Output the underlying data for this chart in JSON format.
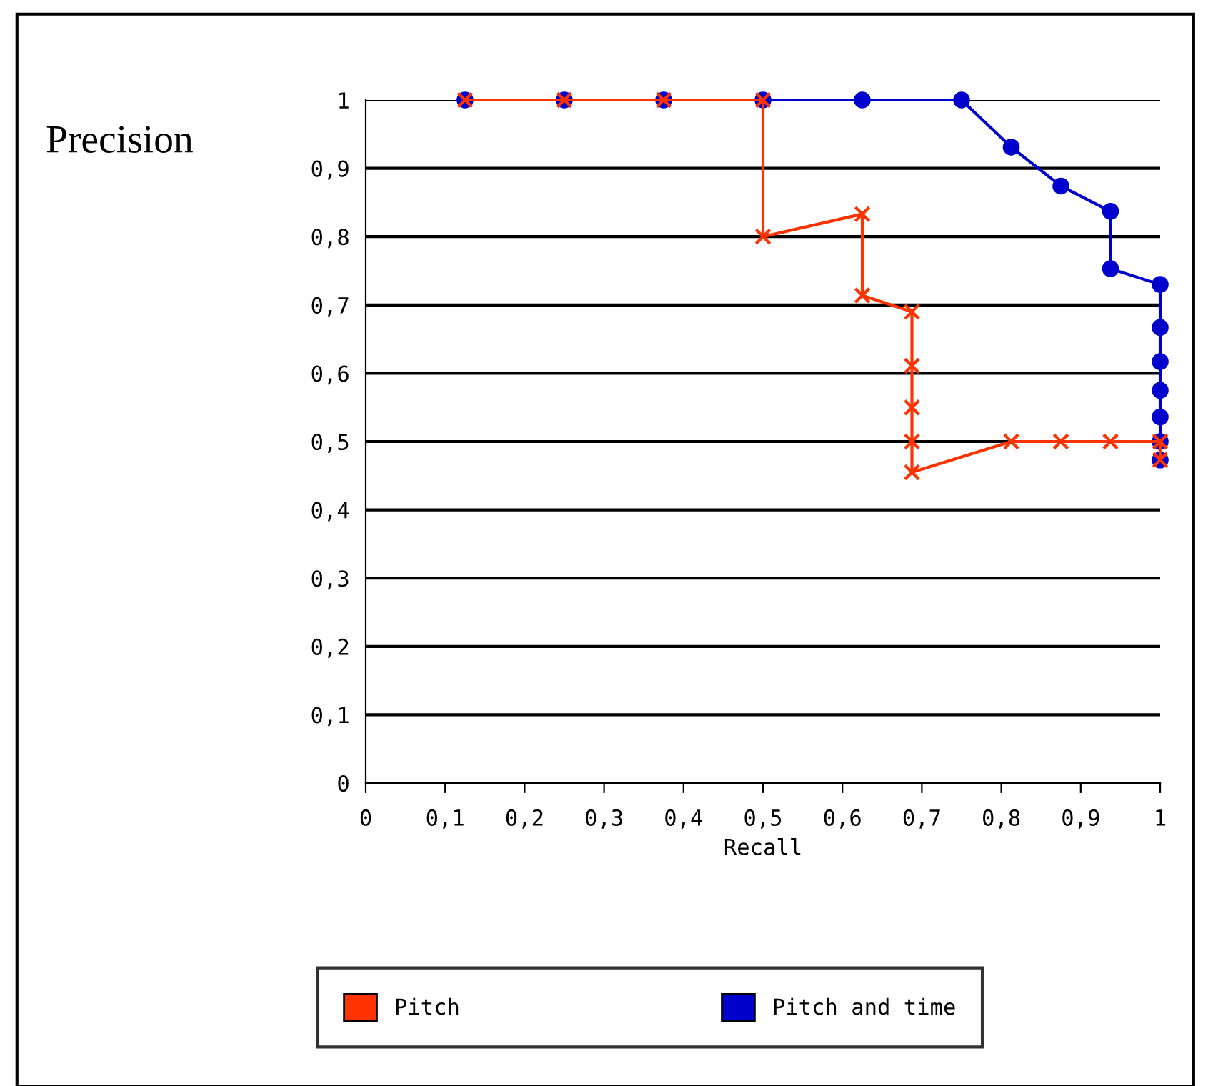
{
  "chart_data": {
    "type": "line",
    "xlabel": "Recall",
    "ylabel": "Precision",
    "xlim": [
      0,
      1
    ],
    "ylim": [
      0,
      1
    ],
    "xticks": [
      {
        "value": 0,
        "label": "0"
      },
      {
        "value": 0.1,
        "label": "0,1"
      },
      {
        "value": 0.2,
        "label": "0,2"
      },
      {
        "value": 0.3,
        "label": "0,3"
      },
      {
        "value": 0.4,
        "label": "0,4"
      },
      {
        "value": 0.5,
        "label": "0,5"
      },
      {
        "value": 0.6,
        "label": "0,6"
      },
      {
        "value": 0.7,
        "label": "0,7"
      },
      {
        "value": 0.8,
        "label": "0,8"
      },
      {
        "value": 0.9,
        "label": "0,9"
      },
      {
        "value": 1,
        "label": "1"
      }
    ],
    "yticks": [
      {
        "value": 0,
        "label": "0"
      },
      {
        "value": 0.1,
        "label": "0,1"
      },
      {
        "value": 0.2,
        "label": "0,2"
      },
      {
        "value": 0.3,
        "label": "0,3"
      },
      {
        "value": 0.4,
        "label": "0,4"
      },
      {
        "value": 0.5,
        "label": "0,5"
      },
      {
        "value": 0.6,
        "label": "0,6"
      },
      {
        "value": 0.7,
        "label": "0,7"
      },
      {
        "value": 0.8,
        "label": "0,8"
      },
      {
        "value": 0.9,
        "label": "0,9"
      },
      {
        "value": 1,
        "label": "1"
      }
    ],
    "grid": "y",
    "legend": "bottom",
    "series": [
      {
        "name": "Pitch",
        "color": "#ff3300",
        "marker": "cross",
        "x": [
          0.125,
          0.25,
          0.375,
          0.5,
          0.5,
          0.625,
          0.625,
          0.6875,
          0.6875,
          0.6875,
          0.6875,
          0.6875,
          0.8125,
          0.875,
          0.9375,
          1,
          1
        ],
        "values": [
          1,
          1,
          1,
          1,
          0.8,
          0.833,
          0.714,
          0.69,
          0.611,
          0.55,
          0.5,
          0.455,
          0.5,
          0.5,
          0.5,
          0.5,
          0.473
        ]
      },
      {
        "name": "Pitch and time",
        "color": "#0000cc",
        "marker": "circle",
        "x": [
          0.125,
          0.25,
          0.375,
          0.5,
          0.625,
          0.75,
          0.8125,
          0.875,
          0.9375,
          0.9375,
          1,
          1,
          1,
          1,
          1,
          1,
          1
        ],
        "values": [
          1,
          1,
          1,
          1,
          1,
          1,
          0.931,
          0.874,
          0.837,
          0.753,
          0.73,
          0.667,
          0.617,
          0.575,
          0.536,
          0.5,
          0.473
        ]
      }
    ]
  }
}
